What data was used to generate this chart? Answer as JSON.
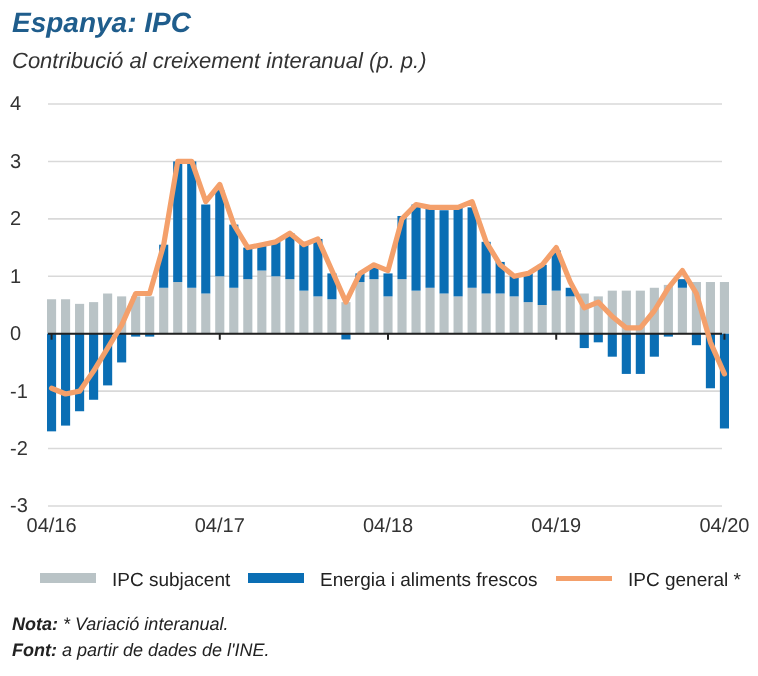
{
  "chart_data": {
    "type": "bar",
    "title": "Espanya: IPC",
    "subtitle": "Contribució al creixement interanual (p. p.)",
    "categories": [
      "04/16",
      null,
      null,
      null,
      null,
      null,
      null,
      null,
      null,
      null,
      null,
      null,
      "04/17",
      null,
      null,
      null,
      null,
      null,
      null,
      null,
      null,
      null,
      null,
      null,
      "04/18",
      null,
      null,
      null,
      null,
      null,
      null,
      null,
      null,
      null,
      null,
      null,
      "04/19",
      null,
      null,
      null,
      null,
      null,
      null,
      null,
      null,
      null,
      null,
      null,
      "04/20"
    ],
    "stacked": true,
    "series": [
      {
        "name": "IPC subjacent",
        "color": "#b9c3c6",
        "values": [
          0.6,
          0.6,
          0.52,
          0.55,
          0.7,
          0.65,
          0.65,
          0.65,
          0.8,
          0.9,
          0.8,
          0.7,
          1.0,
          0.8,
          0.95,
          1.1,
          1.0,
          0.95,
          0.75,
          0.65,
          0.6,
          0.55,
          0.9,
          0.95,
          0.65,
          0.95,
          0.75,
          0.8,
          0.7,
          0.65,
          0.8,
          0.7,
          0.7,
          0.65,
          0.55,
          0.5,
          0.75,
          0.65,
          0.7,
          0.65,
          0.75,
          0.75,
          0.75,
          0.8,
          0.85,
          0.8,
          0.9,
          0.9,
          0.9
        ]
      },
      {
        "name": "Energia i aliments frescos",
        "color": "#0a6eb4",
        "values": [
          -1.7,
          -1.6,
          -1.35,
          -1.15,
          -0.9,
          -0.5,
          -0.05,
          -0.05,
          0.75,
          2.1,
          2.2,
          1.55,
          1.5,
          1.1,
          0.55,
          0.45,
          0.6,
          0.8,
          0.85,
          1.0,
          0.45,
          -0.1,
          0.15,
          0.2,
          0.4,
          1.1,
          1.5,
          1.4,
          1.45,
          1.55,
          1.4,
          0.9,
          0.55,
          0.35,
          0.5,
          0.7,
          0.7,
          0.15,
          -0.25,
          -0.15,
          -0.4,
          -0.7,
          -0.7,
          -0.4,
          -0.05,
          0.15,
          -0.2,
          -0.95,
          -1.65
        ]
      },
      {
        "name": "IPC general *",
        "type": "line",
        "color": "#f4a06b",
        "values": [
          -0.95,
          -1.05,
          -1.0,
          -0.65,
          -0.25,
          0.15,
          0.7,
          0.7,
          1.55,
          3.0,
          3.0,
          2.3,
          2.6,
          1.9,
          1.5,
          1.55,
          1.6,
          1.75,
          1.55,
          1.65,
          1.1,
          0.55,
          1.05,
          1.2,
          1.1,
          2.0,
          2.25,
          2.2,
          2.2,
          2.2,
          2.3,
          1.6,
          1.2,
          1.0,
          1.05,
          1.2,
          1.5,
          0.9,
          0.45,
          0.55,
          0.3,
          0.1,
          0.1,
          0.4,
          0.8,
          1.1,
          0.7,
          -0.15,
          -0.7
        ]
      }
    ],
    "ylim": [
      -3,
      4
    ],
    "yticks": [
      -3,
      -2,
      -1,
      0,
      1,
      2,
      3,
      4
    ],
    "grid": "y",
    "legend": "bottom",
    "marker": "none",
    "line_style": "solid",
    "annotations": [
      "Nota: * Variació interanual.",
      "Font: a partir de dades de l'INE."
    ]
  }
}
